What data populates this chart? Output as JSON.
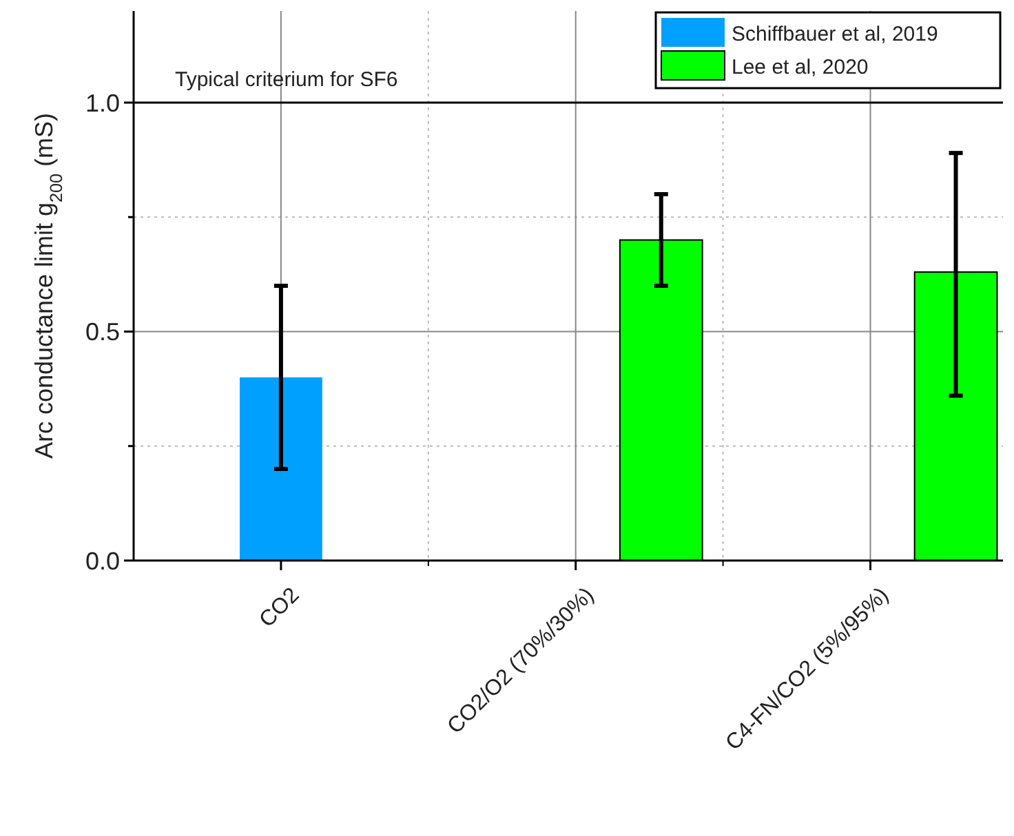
{
  "chart_data": {
    "type": "bar",
    "ylabel": "Arc conductance limit g$_{200}$ (mS)",
    "categories": [
      "CO2",
      "CO2/O2 (70%/30%)",
      "C4-FN/CO2 (5%/95%)"
    ],
    "series": [
      {
        "name": "Schiffbauer et al, 2019",
        "color": "#00a0ff",
        "values": [
          0.4,
          null,
          null
        ],
        "errors": [
          [
            0.2,
            0.6
          ],
          null,
          null
        ]
      },
      {
        "name": "Lee et al, 2020",
        "color": "#00ff00",
        "values": [
          null,
          0.7,
          0.63
        ],
        "errors": [
          null,
          [
            0.6,
            0.8
          ],
          [
            0.36,
            0.89
          ]
        ]
      }
    ],
    "ylim": [
      0,
      1.2
    ],
    "yticks": [
      {
        "value": 0,
        "label": "0.0"
      },
      {
        "value": 0.25,
        "label": null
      },
      {
        "value": 0.5,
        "label": "0.5"
      },
      {
        "value": 0.75,
        "label": null
      },
      {
        "value": 1,
        "label": "1.0"
      }
    ],
    "grid": true,
    "legend": "top right",
    "ref_lines": [
      {
        "axis": "y",
        "value": 1,
        "label": "Typical criterium for SF6",
        "color": "#000000"
      }
    ]
  }
}
